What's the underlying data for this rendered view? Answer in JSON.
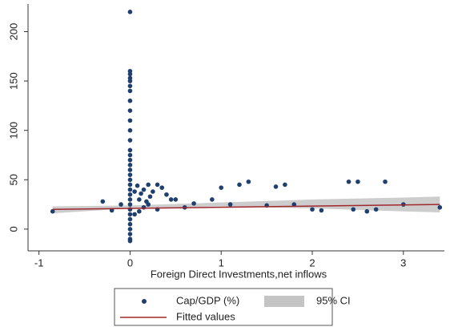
{
  "chart_data": {
    "type": "scatter",
    "x_label": "Foreign Direct Investments,net inflows",
    "xlim": [
      -1.12,
      3.45
    ],
    "xticks": [
      -1,
      0,
      1,
      2,
      3
    ],
    "ylim": [
      -22,
      228
    ],
    "yticks": [
      0,
      50,
      100,
      150,
      200
    ],
    "series": [
      {
        "name": "Cap/GDP (%)",
        "type": "scatter",
        "color": "#1f3f6e",
        "x": [
          0,
          0,
          0,
          0,
          0,
          0,
          0,
          0,
          0,
          0,
          0,
          0,
          0,
          0,
          0,
          0,
          0,
          0,
          0,
          0,
          0,
          0,
          0,
          0,
          0,
          0,
          0,
          0,
          0,
          0,
          0,
          0,
          0.05,
          0.08,
          0.1,
          0.12,
          0.15,
          0.18,
          0.2,
          0.22,
          0.25,
          0.3,
          0.35,
          0.4,
          0.45,
          0.5,
          0.6,
          0.7,
          0.9,
          1.0,
          1.1,
          1.2,
          1.3,
          1.5,
          1.6,
          1.7,
          1.8,
          2.0,
          2.1,
          2.4,
          2.45,
          2.5,
          2.6,
          2.7,
          2.8,
          3.0,
          3.4,
          -0.85,
          -0.3,
          -0.2,
          -0.1,
          0.05,
          0.1,
          0.15,
          0.2,
          0.3
        ],
        "values": [
          220,
          160,
          157,
          153,
          150,
          145,
          140,
          130,
          120,
          110,
          100,
          90,
          80,
          75,
          70,
          65,
          60,
          55,
          50,
          45,
          40,
          35,
          30,
          25,
          20,
          15,
          10,
          5,
          0,
          -5,
          -10,
          -12,
          38,
          44,
          30,
          36,
          40,
          28,
          45,
          33,
          38,
          45,
          42,
          35,
          30,
          30,
          22,
          26,
          30,
          42,
          25,
          45,
          48,
          24,
          43,
          45,
          25,
          20,
          19,
          48,
          20,
          48,
          18,
          20,
          48,
          25,
          22,
          18,
          28,
          19,
          25,
          15,
          18,
          22,
          25,
          20
        ]
      },
      {
        "name": "95% CI",
        "type": "band",
        "color": "#c4c4c4",
        "x": [
          -0.85,
          0,
          1,
          2,
          3,
          3.4
        ],
        "lower": [
          16,
          21,
          23,
          21,
          18,
          17
        ],
        "upper": [
          23,
          24,
          27,
          30,
          32,
          33
        ]
      },
      {
        "name": "Fitted values",
        "type": "line",
        "color": "#a0282d",
        "x": [
          -0.85,
          3.4
        ],
        "values": [
          20,
          25
        ]
      }
    ]
  }
}
